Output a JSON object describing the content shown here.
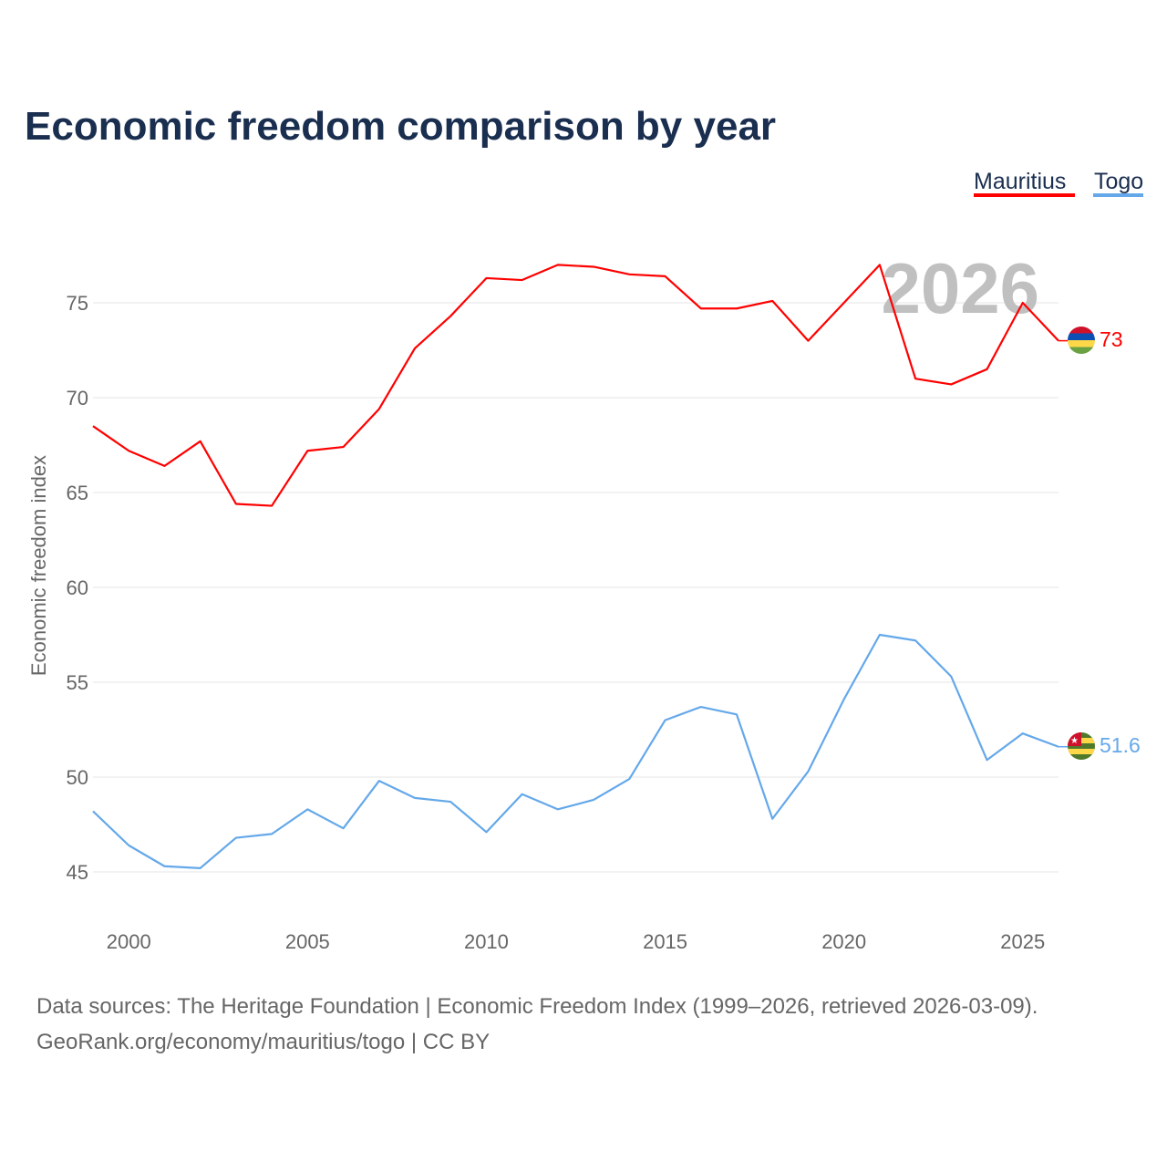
{
  "chart_data": {
    "type": "line",
    "title": "Economic freedom comparison by year",
    "xlabel": "",
    "ylabel": "Economic freedom index",
    "xlim": [
      1999,
      2026
    ],
    "ylim": [
      43,
      79
    ],
    "grid": true,
    "legend_position": "top-right",
    "x_ticks": [
      2000,
      2005,
      2010,
      2015,
      2020,
      2025
    ],
    "x_tick_labels": [
      "2000",
      "2005",
      "2010",
      "2015",
      "2020",
      "2025"
    ],
    "y_ticks": [
      45,
      50,
      55,
      60,
      65,
      70,
      75
    ],
    "y_tick_labels": [
      "45",
      "50",
      "55",
      "60",
      "65",
      "70",
      "75"
    ],
    "year_annotation": "2026",
    "x": [
      1999,
      2000,
      2001,
      2002,
      2003,
      2004,
      2005,
      2006,
      2007,
      2008,
      2009,
      2010,
      2011,
      2012,
      2013,
      2014,
      2015,
      2016,
      2017,
      2018,
      2019,
      2020,
      2021,
      2022,
      2023,
      2024,
      2025,
      2026
    ],
    "series": [
      {
        "name": "Mauritius",
        "color": "#ff0000",
        "end_label": "73",
        "values": [
          68.5,
          67.2,
          66.4,
          67.7,
          64.4,
          64.3,
          67.2,
          67.4,
          69.4,
          72.6,
          74.3,
          76.3,
          76.2,
          77.0,
          76.9,
          76.5,
          76.4,
          74.7,
          74.7,
          75.1,
          73.0,
          75.0,
          77.0,
          71.0,
          70.7,
          71.5,
          75.0,
          73.0
        ]
      },
      {
        "name": "Togo",
        "color": "#64a8ea",
        "end_label": "51.6",
        "values": [
          48.2,
          46.4,
          45.3,
          45.2,
          46.8,
          47.0,
          48.3,
          47.3,
          49.8,
          48.9,
          48.7,
          47.1,
          49.1,
          48.3,
          48.8,
          49.9,
          53.0,
          53.7,
          53.3,
          47.8,
          50.3,
          54.1,
          57.5,
          57.2,
          55.3,
          50.9,
          52.3,
          51.6
        ]
      }
    ]
  },
  "footer": {
    "line1": "Data sources: The Heritage Foundation | Economic Freedom Index (1999–2026, retrieved 2026-03-09).",
    "line2": "GeoRank.org/economy/mauritius/togo | CC BY"
  },
  "colors": {
    "title": "#1a2e4f",
    "axis_text": "#666666",
    "grid": "#e6e6e6",
    "annotation": "#c0c0c0"
  }
}
